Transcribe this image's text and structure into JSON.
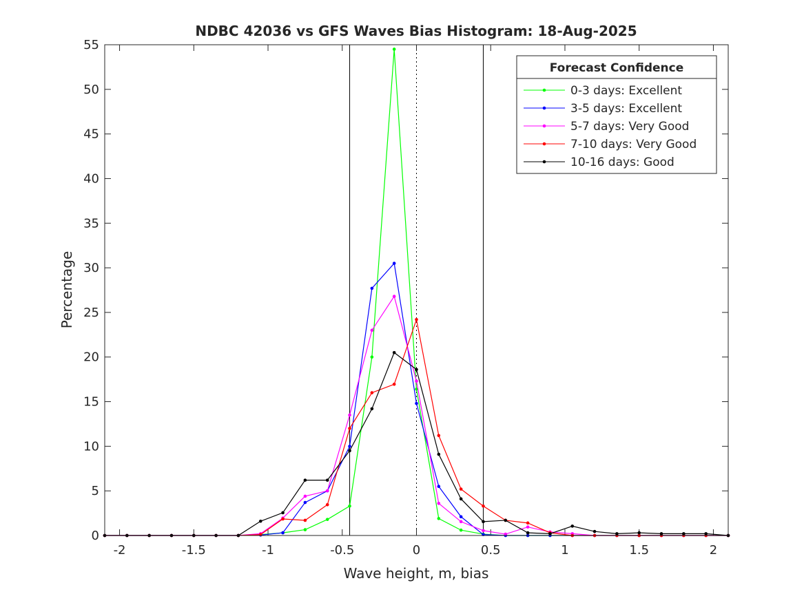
{
  "chart_data": {
    "type": "line",
    "title": "NDBC 42036 vs GFS Waves Bias Histogram: 18-Aug-2025",
    "xlabel": "Wave height, m, bias",
    "ylabel": "Percentage",
    "xlim": [
      -2.1,
      2.1
    ],
    "ylim": [
      0,
      55
    ],
    "xticks": [
      -2,
      -1.5,
      -1,
      -0.5,
      0,
      0.5,
      1,
      1.5,
      2
    ],
    "xtick_labels": [
      "-2",
      "-1.5",
      "-1",
      "-0.5",
      "0",
      "0.5",
      "1",
      "1.5",
      "2"
    ],
    "yticks": [
      0,
      5,
      10,
      15,
      20,
      25,
      30,
      35,
      40,
      45,
      50,
      55
    ],
    "ytick_labels": [
      "0",
      "5",
      "10",
      "15",
      "20",
      "25",
      "30",
      "35",
      "40",
      "45",
      "50",
      "55"
    ],
    "vlines": [
      {
        "x": -0.45,
        "style": "solid"
      },
      {
        "x": 0,
        "style": "dotted"
      },
      {
        "x": 0.45,
        "style": "solid"
      }
    ],
    "legend": {
      "title": "Forecast Confidence",
      "placement": "top-right"
    },
    "x": [
      -2.1,
      -1.95,
      -1.8,
      -1.65,
      -1.5,
      -1.35,
      -1.2,
      -1.05,
      -0.9,
      -0.75,
      -0.6,
      -0.45,
      -0.3,
      -0.15,
      0,
      0.15,
      0.3,
      0.45,
      0.6,
      0.75,
      0.9,
      1.05,
      1.2,
      1.35,
      1.5,
      1.65,
      1.8,
      1.95,
      2.1
    ],
    "series": [
      {
        "name": "0-3 days: Excellent",
        "color": "#00ff00",
        "values": [
          0,
          0,
          0,
          0,
          0,
          0,
          0,
          0.1,
          0.3,
          0.65,
          1.8,
          3.3,
          20,
          54.5,
          16.4,
          1.9,
          0.6,
          0.15,
          0,
          0,
          0,
          0,
          0,
          0,
          0,
          0,
          0,
          0,
          0
        ]
      },
      {
        "name": "3-5 days: Excellent",
        "color": "#0000ff",
        "values": [
          0,
          0,
          0,
          0,
          0,
          0,
          0,
          0.05,
          0.3,
          3.7,
          5.0,
          10.0,
          27.7,
          30.5,
          14.8,
          5.5,
          2.1,
          0.1,
          0,
          0,
          0,
          0,
          0,
          0,
          0,
          0,
          0,
          0,
          0
        ]
      },
      {
        "name": "5-7 days: Very Good",
        "color": "#ff00ff",
        "values": [
          0,
          0,
          0,
          0,
          0,
          0,
          0,
          0.2,
          1.95,
          4.4,
          5.0,
          13.5,
          23.0,
          26.8,
          17.3,
          3.6,
          1.55,
          0.55,
          0.15,
          0.95,
          0.4,
          0.2,
          0,
          0,
          0,
          0,
          0,
          0,
          0
        ]
      },
      {
        "name": "7-10 days: Very Good",
        "color": "#ff0000",
        "values": [
          0,
          0,
          0,
          0,
          0,
          0,
          0,
          0.1,
          1.85,
          1.7,
          3.45,
          12.0,
          16.0,
          16.95,
          24.2,
          11.2,
          5.2,
          3.3,
          1.7,
          1.4,
          0.3,
          0,
          0,
          0,
          0,
          0,
          0,
          0,
          0
        ]
      },
      {
        "name": "10-16 days: Good",
        "color": "#000000",
        "values": [
          0,
          0,
          0,
          0,
          0,
          0,
          0,
          1.6,
          2.55,
          6.2,
          6.2,
          9.5,
          14.2,
          20.5,
          18.6,
          9.1,
          4.1,
          1.55,
          1.7,
          0.3,
          0.2,
          1.05,
          0.45,
          0.2,
          0.3,
          0.2,
          0.2,
          0.2,
          0
        ]
      }
    ]
  }
}
